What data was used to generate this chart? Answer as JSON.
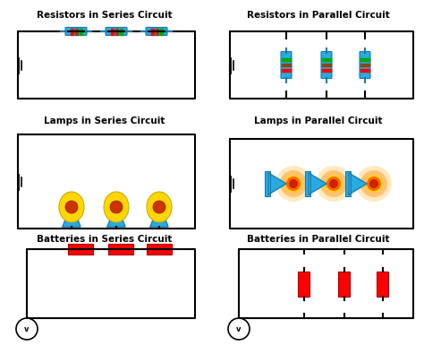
{
  "title_series_resistors": "Resistors in Series Circuit",
  "title_parallel_resistors": "Resistors in Parallel Circuit",
  "title_series_lamps": "Lamps in Series Circuit",
  "title_parallel_lamps": "Lamps in Parallel Circuit",
  "title_series_batteries": "Batteries in Series Circuit",
  "title_parallel_batteries": "Batteries in Parallel Circuit",
  "bg_color": "#ffffff",
  "wire_color": "#000000",
  "resistor_body_color": "#29ABE2",
  "resistor_stripe1": "#FF0000",
  "resistor_stripe2": "#00AA00",
  "battery_color": "#FF0000",
  "lamp_base_color": "#29ABE2",
  "lamp_glow_color": "#FFD700",
  "lamp_hot_color": "#FF6600",
  "title_fontsize": 7.5,
  "title_fontweight": "bold"
}
